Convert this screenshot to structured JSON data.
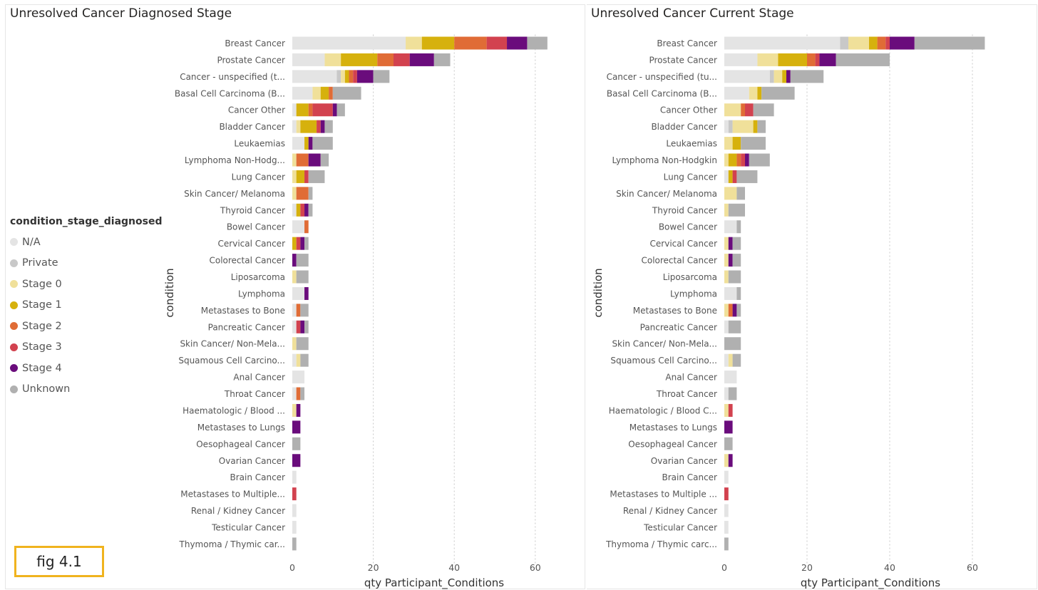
{
  "colors": {
    "N/A": "#e4e4e4",
    "Private": "#c8c8c8",
    "Stage 0": "#f0e09a",
    "Stage 1": "#d6b10d",
    "Stage 2": "#e06c36",
    "Stage 3": "#d2424f",
    "Stage 4": "#6a0c7c",
    "Unknown": "#b0b0b0"
  },
  "legend": {
    "title": "condition_stage_diagnosed",
    "items": [
      "N/A",
      "Private",
      "Stage 0",
      "Stage 1",
      "Stage 2",
      "Stage 3",
      "Stage 4",
      "Unknown"
    ]
  },
  "fig_label": "fig 4.1",
  "chart_data": [
    {
      "type": "bar",
      "orientation": "horizontal",
      "stacked": true,
      "title": "Unresolved Cancer Diagnosed Stage",
      "xlabel": "qty Participant_Conditions",
      "ylabel": "condition",
      "xlim": [
        0,
        65
      ],
      "xticks": [
        0,
        20,
        40,
        60
      ],
      "series_names": [
        "N/A",
        "Private",
        "Stage 0",
        "Stage 1",
        "Stage 2",
        "Stage 3",
        "Stage 4",
        "Unknown"
      ],
      "categories": [
        "Breast Cancer",
        "Prostate Cancer",
        "Cancer - unspecified (t...",
        "Basal Cell Carcinoma (B...",
        "Cancer Other",
        "Bladder Cancer",
        "Leukaemias",
        "Lymphoma Non-Hodg...",
        "Lung Cancer",
        "Skin Cancer/ Melanoma",
        "Thyroid Cancer",
        "Bowel Cancer",
        "Cervical Cancer",
        "Colorectal Cancer",
        "Liposarcoma",
        "Lymphoma",
        "Metastases to Bone",
        "Pancreatic Cancer",
        "Skin Cancer/ Non-Mela...",
        "Squamous Cell Carcino...",
        "Anal Cancer",
        "Throat Cancer",
        "Haematologic / Blood ...",
        "Metastases to Lungs",
        "Oesophageal Cancer",
        "Ovarian Cancer",
        "Brain Cancer",
        "Metastases to Multiple...",
        "Renal / Kidney Cancer",
        "Testicular Cancer",
        "Thymoma / Thymic car..."
      ],
      "values": [
        [
          28,
          0,
          4,
          8,
          8,
          5,
          5,
          5
        ],
        [
          8,
          0,
          4,
          9,
          4,
          4,
          6,
          4
        ],
        [
          11,
          1,
          1,
          1,
          1,
          1,
          4,
          4
        ],
        [
          5,
          0,
          2,
          2,
          1,
          0,
          0,
          7
        ],
        [
          1,
          0,
          0,
          3,
          1,
          5,
          1,
          2
        ],
        [
          1,
          0,
          1,
          4,
          0,
          1,
          1,
          2
        ],
        [
          3,
          0,
          0,
          1,
          0,
          0,
          1,
          5
        ],
        [
          0,
          0,
          1,
          0,
          3,
          0,
          3,
          2
        ],
        [
          0,
          0,
          1,
          2,
          0,
          1,
          0,
          4
        ],
        [
          0,
          0,
          1,
          0,
          3,
          0,
          0,
          1
        ],
        [
          1,
          0,
          0,
          1,
          0,
          1,
          1,
          1
        ],
        [
          3,
          0,
          0,
          0,
          1,
          0,
          0,
          0
        ],
        [
          0,
          0,
          0,
          1,
          0,
          1,
          1,
          1
        ],
        [
          0,
          0,
          0,
          0,
          0,
          0,
          1,
          3
        ],
        [
          0,
          0,
          1,
          0,
          0,
          0,
          0,
          3
        ],
        [
          3,
          0,
          0,
          0,
          0,
          0,
          1,
          0
        ],
        [
          1,
          0,
          0,
          0,
          1,
          0,
          0,
          2
        ],
        [
          1,
          0,
          0,
          0,
          0,
          1,
          1,
          1
        ],
        [
          0,
          0,
          1,
          0,
          0,
          0,
          0,
          3
        ],
        [
          1,
          0,
          1,
          0,
          0,
          0,
          0,
          2
        ],
        [
          3,
          0,
          0,
          0,
          0,
          0,
          0,
          0
        ],
        [
          1,
          0,
          0,
          0,
          1,
          0,
          0,
          1
        ],
        [
          0,
          0,
          1,
          0,
          0,
          0,
          1,
          0
        ],
        [
          0,
          0,
          0,
          0,
          0,
          0,
          2,
          0
        ],
        [
          0,
          0,
          0,
          0,
          0,
          0,
          0,
          2
        ],
        [
          0,
          0,
          0,
          0,
          0,
          0,
          2,
          0
        ],
        [
          1,
          0,
          0,
          0,
          0,
          0,
          0,
          0
        ],
        [
          0,
          0,
          0,
          0,
          0,
          1,
          0,
          0
        ],
        [
          1,
          0,
          0,
          0,
          0,
          0,
          0,
          0
        ],
        [
          1,
          0,
          0,
          0,
          0,
          0,
          0,
          0
        ],
        [
          0,
          0,
          0,
          0,
          0,
          0,
          0,
          1
        ]
      ]
    },
    {
      "type": "bar",
      "orientation": "horizontal",
      "stacked": true,
      "title": "Unresolved Cancer Current Stage",
      "xlabel": "qty Participant_Conditions",
      "ylabel": "condition",
      "xlim": [
        0,
        65
      ],
      "xticks": [
        0,
        20,
        40,
        60
      ],
      "series_names": [
        "N/A",
        "Private",
        "Stage 0",
        "Stage 1",
        "Stage 2",
        "Stage 3",
        "Stage 4",
        "Unknown"
      ],
      "categories": [
        "Breast Cancer",
        "Prostate Cancer",
        "Cancer - unspecified (tu...",
        "Basal Cell Carcinoma (B...",
        "Cancer Other",
        "Bladder Cancer",
        "Leukaemias",
        "Lymphoma Non-Hodgkin",
        "Lung Cancer",
        "Skin Cancer/ Melanoma",
        "Thyroid Cancer",
        "Bowel Cancer",
        "Cervical Cancer",
        "Colorectal Cancer",
        "Liposarcoma",
        "Lymphoma",
        "Metastases to Bone",
        "Pancreatic Cancer",
        "Skin Cancer/ Non-Mela...",
        "Squamous Cell Carcino...",
        "Anal Cancer",
        "Throat Cancer",
        "Haematologic / Blood C...",
        "Metastases to Lungs",
        "Oesophageal Cancer",
        "Ovarian Cancer",
        "Brain Cancer",
        "Metastases to Multiple ...",
        "Renal / Kidney Cancer",
        "Testicular Cancer",
        "Thymoma / Thymic carc..."
      ],
      "values": [
        [
          28,
          2,
          5,
          2,
          2,
          1,
          6,
          17
        ],
        [
          8,
          0,
          5,
          7,
          2,
          1,
          4,
          13
        ],
        [
          11,
          1,
          2,
          1,
          0,
          0,
          1,
          8
        ],
        [
          6,
          0,
          2,
          1,
          0,
          0,
          0,
          8
        ],
        [
          0,
          0,
          4,
          0,
          1,
          2,
          0,
          5
        ],
        [
          1,
          1,
          5,
          1,
          0,
          0,
          0,
          2
        ],
        [
          0,
          0,
          2,
          2,
          0,
          0,
          0,
          6
        ],
        [
          0,
          0,
          1,
          2,
          1,
          1,
          1,
          5
        ],
        [
          1,
          0,
          0,
          1,
          0,
          1,
          0,
          5
        ],
        [
          0,
          0,
          3,
          0,
          0,
          0,
          0,
          2
        ],
        [
          0,
          0,
          1,
          0,
          0,
          0,
          0,
          4
        ],
        [
          3,
          0,
          0,
          0,
          0,
          0,
          0,
          1
        ],
        [
          0,
          0,
          1,
          0,
          0,
          0,
          1,
          2
        ],
        [
          0,
          0,
          1,
          0,
          0,
          0,
          1,
          2
        ],
        [
          0,
          0,
          1,
          0,
          0,
          0,
          0,
          3
        ],
        [
          3,
          0,
          0,
          0,
          0,
          0,
          0,
          1
        ],
        [
          0,
          0,
          1,
          0,
          1,
          0,
          1,
          1
        ],
        [
          1,
          0,
          0,
          0,
          0,
          0,
          0,
          3
        ],
        [
          0,
          0,
          0,
          0,
          0,
          0,
          0,
          4
        ],
        [
          1,
          0,
          1,
          0,
          0,
          0,
          0,
          2
        ],
        [
          3,
          0,
          0,
          0,
          0,
          0,
          0,
          0
        ],
        [
          1,
          0,
          0,
          0,
          0,
          0,
          0,
          2
        ],
        [
          0,
          0,
          1,
          0,
          0,
          1,
          0,
          0
        ],
        [
          0,
          0,
          0,
          0,
          0,
          0,
          2,
          0
        ],
        [
          0,
          0,
          0,
          0,
          0,
          0,
          0,
          2
        ],
        [
          0,
          0,
          1,
          0,
          0,
          0,
          1,
          0
        ],
        [
          1,
          0,
          0,
          0,
          0,
          0,
          0,
          0
        ],
        [
          0,
          0,
          0,
          0,
          0,
          1,
          0,
          0
        ],
        [
          1,
          0,
          0,
          0,
          0,
          0,
          0,
          0
        ],
        [
          1,
          0,
          0,
          0,
          0,
          0,
          0,
          0
        ],
        [
          0,
          0,
          0,
          0,
          0,
          0,
          0,
          1
        ]
      ]
    }
  ]
}
